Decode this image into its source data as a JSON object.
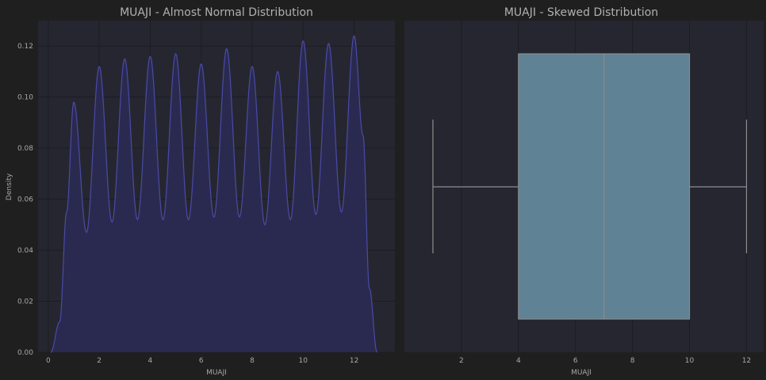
{
  "chart_data": [
    {
      "type": "area",
      "kind": "kde",
      "title": "MUAJI - Almost Normal Distribution",
      "xlabel": "MUAJI",
      "ylabel": "Density",
      "xlim": [
        -0.4,
        13.6
      ],
      "ylim": [
        0,
        0.13
      ],
      "xticks": [
        0,
        2,
        4,
        6,
        8,
        10,
        12
      ],
      "yticks": [
        0.0,
        0.02,
        0.04,
        0.06,
        0.08,
        0.1,
        0.12
      ],
      "x_range": [
        0.1,
        12.9
      ],
      "peaks": [
        {
          "x": 1,
          "y": 0.098
        },
        {
          "x": 2,
          "y": 0.112
        },
        {
          "x": 3,
          "y": 0.115
        },
        {
          "x": 4,
          "y": 0.116
        },
        {
          "x": 5,
          "y": 0.117
        },
        {
          "x": 6,
          "y": 0.113
        },
        {
          "x": 7,
          "y": 0.119
        },
        {
          "x": 8,
          "y": 0.112
        },
        {
          "x": 9,
          "y": 0.11
        },
        {
          "x": 10,
          "y": 0.122
        },
        {
          "x": 11,
          "y": 0.121
        },
        {
          "x": 12,
          "y": 0.124
        }
      ],
      "troughs": [
        {
          "x": 1.5,
          "y": 0.047
        },
        {
          "x": 2.5,
          "y": 0.051
        },
        {
          "x": 3.5,
          "y": 0.052
        },
        {
          "x": 4.5,
          "y": 0.052
        },
        {
          "x": 5.5,
          "y": 0.052
        },
        {
          "x": 6.5,
          "y": 0.053
        },
        {
          "x": 7.5,
          "y": 0.053
        },
        {
          "x": 8.5,
          "y": 0.05
        },
        {
          "x": 9.5,
          "y": 0.052
        },
        {
          "x": 10.5,
          "y": 0.054
        },
        {
          "x": 11.5,
          "y": 0.055
        }
      ],
      "fill_color": "#2a2a52",
      "line_color": "#4a4aa8",
      "grid": true
    },
    {
      "type": "box",
      "orientation": "horizontal",
      "title": "MUAJI - Skewed Distribution",
      "xlabel": "MUAJI",
      "xlim": [
        0.0,
        12.6
      ],
      "xticks": [
        2,
        4,
        6,
        8,
        10,
        12
      ],
      "stats": {
        "min": 1,
        "q1": 4,
        "median": 7,
        "q3": 10,
        "max": 12
      },
      "box_color": "#5f8294",
      "line_color": "#8c8c8c",
      "grid": true
    }
  ]
}
